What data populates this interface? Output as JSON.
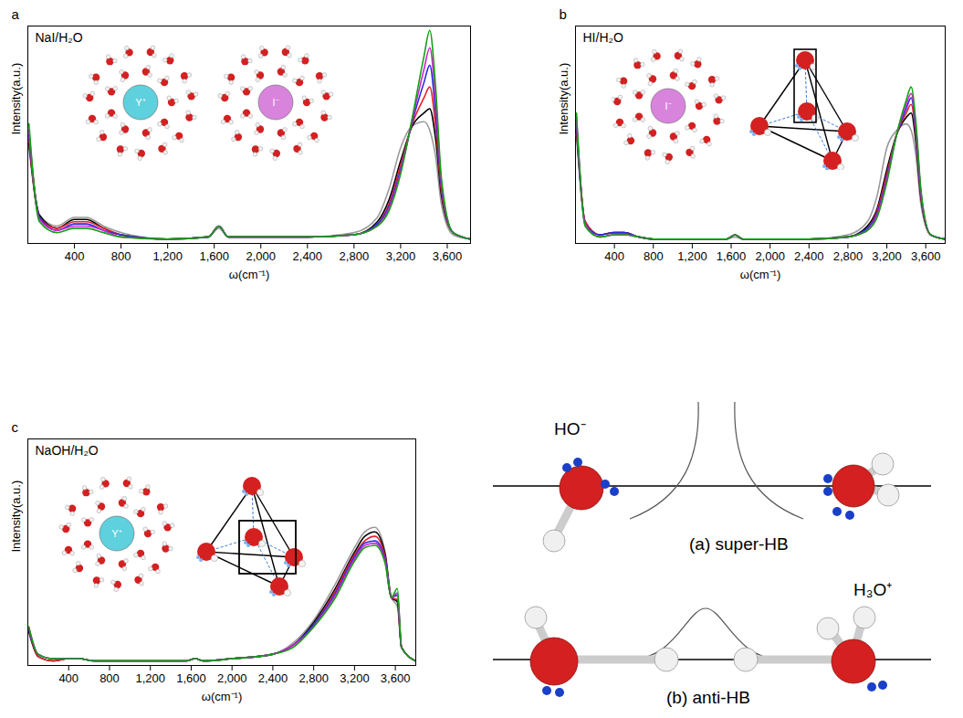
{
  "chart_data": [
    {
      "type": "line",
      "panel_label": "a",
      "title": "NaI/H₂O",
      "x_label": "ω(cm⁻¹)",
      "y_label": "Intensity(a.u.)",
      "annotations": [
        "Y⁺",
        "I⁻"
      ],
      "xlim": [
        0,
        3800
      ],
      "xticks": [
        400,
        800,
        1200,
        1600,
        2000,
        2400,
        2800,
        3200,
        3600
      ],
      "ylim": [
        0,
        1
      ],
      "yticks": [],
      "tick_labels": "x",
      "grid": false,
      "x": [
        10,
        100,
        250,
        400,
        500,
        650,
        800,
        1200,
        1550,
        1640,
        1720,
        2000,
        2400,
        2800,
        3000,
        3100,
        3200,
        3300,
        3400,
        3450,
        3500,
        3550,
        3650,
        3800
      ],
      "series": [
        {
          "color": "#9a9a9a",
          "values": [
            0.44,
            0.13,
            0.08,
            0.12,
            0.12,
            0.08,
            0.05,
            0.02,
            0.03,
            0.07,
            0.03,
            0.03,
            0.03,
            0.05,
            0.12,
            0.25,
            0.44,
            0.54,
            0.56,
            0.52,
            0.4,
            0.18,
            0.04,
            0.02
          ]
        },
        {
          "color": "#000000",
          "values": [
            0.46,
            0.13,
            0.07,
            0.11,
            0.11,
            0.07,
            0.04,
            0.02,
            0.03,
            0.08,
            0.03,
            0.03,
            0.03,
            0.04,
            0.1,
            0.2,
            0.38,
            0.54,
            0.6,
            0.62,
            0.48,
            0.22,
            0.05,
            0.02
          ]
        },
        {
          "color": "#e8202a",
          "values": [
            0.48,
            0.12,
            0.07,
            0.1,
            0.1,
            0.07,
            0.04,
            0.02,
            0.03,
            0.08,
            0.03,
            0.03,
            0.03,
            0.04,
            0.09,
            0.18,
            0.36,
            0.55,
            0.67,
            0.72,
            0.54,
            0.24,
            0.05,
            0.02
          ]
        },
        {
          "color": "#2a2ae0",
          "values": [
            0.5,
            0.12,
            0.06,
            0.09,
            0.09,
            0.06,
            0.04,
            0.02,
            0.03,
            0.08,
            0.03,
            0.03,
            0.03,
            0.04,
            0.09,
            0.17,
            0.34,
            0.56,
            0.74,
            0.82,
            0.6,
            0.26,
            0.05,
            0.02
          ]
        },
        {
          "color": "#d020d0",
          "values": [
            0.52,
            0.11,
            0.06,
            0.08,
            0.08,
            0.06,
            0.03,
            0.02,
            0.03,
            0.08,
            0.03,
            0.03,
            0.03,
            0.04,
            0.08,
            0.16,
            0.33,
            0.57,
            0.8,
            0.9,
            0.66,
            0.28,
            0.05,
            0.02
          ]
        },
        {
          "color": "#12a012",
          "values": [
            0.55,
            0.1,
            0.05,
            0.07,
            0.07,
            0.05,
            0.03,
            0.02,
            0.03,
            0.08,
            0.03,
            0.03,
            0.03,
            0.04,
            0.08,
            0.15,
            0.32,
            0.58,
            0.86,
            0.98,
            0.72,
            0.3,
            0.05,
            0.02
          ]
        }
      ]
    },
    {
      "type": "line",
      "panel_label": "b",
      "title": "HI/H₂O",
      "x_label": "ω(cm⁻¹)",
      "y_label": "Intensity(a.u.)",
      "annotations": [
        "I⁻"
      ],
      "xlim": [
        0,
        3800
      ],
      "xticks": [
        400,
        800,
        1200,
        1600,
        2000,
        2400,
        2800,
        3200,
        3600
      ],
      "ylim": [
        0,
        1
      ],
      "yticks": [],
      "tick_labels": "x",
      "grid": false,
      "x": [
        10,
        100,
        250,
        400,
        500,
        650,
        800,
        1200,
        1550,
        1640,
        1720,
        2000,
        2400,
        2800,
        3000,
        3100,
        3200,
        3300,
        3400,
        3450,
        3500,
        3550,
        3650,
        3800
      ],
      "series": [
        {
          "color": "#9a9a9a",
          "values": [
            0.5,
            0.08,
            0.03,
            0.04,
            0.04,
            0.03,
            0.02,
            0.02,
            0.02,
            0.03,
            0.02,
            0.02,
            0.02,
            0.04,
            0.1,
            0.22,
            0.44,
            0.52,
            0.55,
            0.52,
            0.4,
            0.18,
            0.04,
            0.02
          ]
        },
        {
          "color": "#000000",
          "values": [
            0.52,
            0.1,
            0.04,
            0.05,
            0.05,
            0.03,
            0.02,
            0.02,
            0.02,
            0.04,
            0.02,
            0.02,
            0.02,
            0.03,
            0.08,
            0.16,
            0.34,
            0.5,
            0.58,
            0.6,
            0.46,
            0.21,
            0.04,
            0.02
          ]
        },
        {
          "color": "#e8202a",
          "values": [
            0.54,
            0.1,
            0.04,
            0.05,
            0.05,
            0.03,
            0.02,
            0.02,
            0.02,
            0.04,
            0.02,
            0.02,
            0.02,
            0.03,
            0.07,
            0.15,
            0.32,
            0.5,
            0.6,
            0.64,
            0.49,
            0.22,
            0.04,
            0.02
          ]
        },
        {
          "color": "#2a2ae0",
          "values": [
            0.56,
            0.09,
            0.04,
            0.05,
            0.05,
            0.03,
            0.02,
            0.02,
            0.02,
            0.04,
            0.02,
            0.02,
            0.02,
            0.03,
            0.07,
            0.14,
            0.3,
            0.5,
            0.62,
            0.67,
            0.51,
            0.23,
            0.04,
            0.02
          ]
        },
        {
          "color": "#d020d0",
          "values": [
            0.58,
            0.09,
            0.03,
            0.04,
            0.04,
            0.03,
            0.02,
            0.02,
            0.02,
            0.04,
            0.02,
            0.02,
            0.02,
            0.03,
            0.06,
            0.13,
            0.29,
            0.5,
            0.64,
            0.69,
            0.53,
            0.24,
            0.04,
            0.02
          ]
        },
        {
          "color": "#12a012",
          "values": [
            0.6,
            0.08,
            0.03,
            0.04,
            0.04,
            0.03,
            0.02,
            0.02,
            0.02,
            0.04,
            0.02,
            0.02,
            0.02,
            0.03,
            0.06,
            0.12,
            0.28,
            0.5,
            0.66,
            0.72,
            0.55,
            0.25,
            0.04,
            0.02
          ]
        }
      ]
    },
    {
      "type": "line",
      "panel_label": "c",
      "title": "NaOH/H₂O",
      "x_label": "ω(cm⁻¹)",
      "y_label": "Intensity(a.u.)",
      "annotations": [
        "Y⁺"
      ],
      "xlim": [
        0,
        3800
      ],
      "xticks": [
        400,
        800,
        1200,
        1600,
        2000,
        2400,
        2800,
        3200,
        3600
      ],
      "ylim": [
        0,
        1
      ],
      "yticks": [],
      "tick_labels": "x",
      "grid": false,
      "x": [
        10,
        100,
        250,
        400,
        500,
        650,
        800,
        1200,
        1550,
        1640,
        1720,
        2000,
        2400,
        2600,
        2800,
        3000,
        3200,
        3300,
        3400,
        3500,
        3560,
        3620,
        3660,
        3800
      ],
      "series": [
        {
          "color": "#9a9a9a",
          "values": [
            0.15,
            0.04,
            0.02,
            0.03,
            0.03,
            0.02,
            0.02,
            0.02,
            0.02,
            0.03,
            0.02,
            0.03,
            0.05,
            0.1,
            0.2,
            0.35,
            0.52,
            0.59,
            0.61,
            0.5,
            0.3,
            0.26,
            0.08,
            0.02
          ]
        },
        {
          "color": "#000000",
          "values": [
            0.15,
            0.04,
            0.02,
            0.03,
            0.03,
            0.02,
            0.02,
            0.02,
            0.02,
            0.03,
            0.02,
            0.03,
            0.05,
            0.09,
            0.19,
            0.33,
            0.5,
            0.57,
            0.59,
            0.49,
            0.3,
            0.28,
            0.08,
            0.02
          ]
        },
        {
          "color": "#e8202a",
          "values": [
            0.16,
            0.04,
            0.02,
            0.03,
            0.03,
            0.02,
            0.02,
            0.02,
            0.02,
            0.03,
            0.02,
            0.03,
            0.05,
            0.09,
            0.18,
            0.32,
            0.49,
            0.55,
            0.57,
            0.48,
            0.3,
            0.29,
            0.08,
            0.02
          ]
        },
        {
          "color": "#2a2ae0",
          "values": [
            0.16,
            0.05,
            0.03,
            0.03,
            0.03,
            0.02,
            0.02,
            0.02,
            0.02,
            0.03,
            0.02,
            0.03,
            0.05,
            0.09,
            0.18,
            0.31,
            0.48,
            0.54,
            0.55,
            0.47,
            0.3,
            0.31,
            0.08,
            0.02
          ]
        },
        {
          "color": "#d020d0",
          "values": [
            0.17,
            0.05,
            0.03,
            0.03,
            0.03,
            0.02,
            0.02,
            0.02,
            0.02,
            0.03,
            0.02,
            0.03,
            0.05,
            0.09,
            0.17,
            0.3,
            0.47,
            0.53,
            0.54,
            0.46,
            0.3,
            0.32,
            0.08,
            0.02
          ]
        },
        {
          "color": "#12a012",
          "values": [
            0.17,
            0.05,
            0.03,
            0.03,
            0.03,
            0.02,
            0.02,
            0.02,
            0.02,
            0.03,
            0.02,
            0.03,
            0.05,
            0.08,
            0.17,
            0.29,
            0.46,
            0.52,
            0.53,
            0.45,
            0.3,
            0.34,
            0.08,
            0.02
          ]
        }
      ]
    }
  ],
  "diagram": {
    "panels": [
      {
        "species": "HO⁻",
        "caption": "(a) super-HB"
      },
      {
        "species": "H₃O⁺",
        "caption": "(b) anti-HB"
      }
    ]
  }
}
